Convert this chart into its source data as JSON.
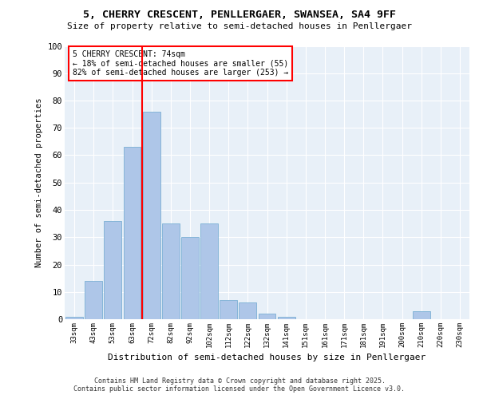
{
  "title1": "5, CHERRY CRESCENT, PENLLERGAER, SWANSEA, SA4 9FF",
  "title2": "Size of property relative to semi-detached houses in Penllergaer",
  "xlabel": "Distribution of semi-detached houses by size in Penllergaer",
  "ylabel": "Number of semi-detached properties",
  "bar_labels": [
    "33sqm",
    "43sqm",
    "53sqm",
    "63sqm",
    "72sqm",
    "82sqm",
    "92sqm",
    "102sqm",
    "112sqm",
    "122sqm",
    "132sqm",
    "141sqm",
    "151sqm",
    "161sqm",
    "171sqm",
    "181sqm",
    "191sqm",
    "200sqm",
    "210sqm",
    "220sqm",
    "230sqm"
  ],
  "bar_values": [
    1,
    14,
    36,
    63,
    76,
    35,
    30,
    35,
    7,
    6,
    2,
    1,
    0,
    0,
    0,
    0,
    0,
    0,
    3,
    0,
    0
  ],
  "bar_color": "#aec6e8",
  "bar_edge_color": "#7bafd4",
  "vline_color": "red",
  "annotation_title": "5 CHERRY CRESCENT: 74sqm",
  "annotation_line1": "← 18% of semi-detached houses are smaller (55)",
  "annotation_line2": "82% of semi-detached houses are larger (253) →",
  "ylim": [
    0,
    100
  ],
  "yticks": [
    0,
    10,
    20,
    30,
    40,
    50,
    60,
    70,
    80,
    90,
    100
  ],
  "background_color": "#e8f0f8",
  "footer1": "Contains HM Land Registry data © Crown copyright and database right 2025.",
  "footer2": "Contains public sector information licensed under the Open Government Licence v3.0."
}
